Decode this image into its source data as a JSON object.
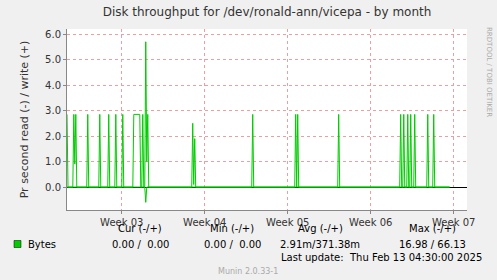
{
  "chart_data": {
    "type": "line",
    "title": "Disk throughput for /dev/ronald-ann/vicepa - by month",
    "y_label": "Pr second read (-) / write (+)",
    "xlim": [
      2.34,
      7.16
    ],
    "xticks": [
      {
        "value": 3,
        "label": "Week 03"
      },
      {
        "value": 4,
        "label": "Week 04"
      },
      {
        "value": 5,
        "label": "Week 05"
      },
      {
        "value": 6,
        "label": "Week 06"
      },
      {
        "value": 7,
        "label": "Week 07"
      }
    ],
    "ylim": [
      -0.9,
      6.2
    ],
    "yticks": [
      {
        "value": 0,
        "label": "0.0"
      },
      {
        "value": 1,
        "label": "1.0"
      },
      {
        "value": 2,
        "label": "2.0"
      },
      {
        "value": 3,
        "label": "3.0"
      },
      {
        "value": 4,
        "label": "4.0"
      },
      {
        "value": 5,
        "label": "5.0"
      },
      {
        "value": 6,
        "label": "6.0"
      }
    ],
    "grid": true,
    "series": [
      {
        "name": "Bytes",
        "color": "#00cc00",
        "x": [
          2.34,
          2.352,
          2.41,
          2.422,
          2.434,
          2.446,
          2.458,
          2.578,
          2.59,
          2.602,
          2.723,
          2.735,
          2.747,
          2.831,
          2.843,
          2.855,
          2.916,
          2.928,
          2.94,
          3.0,
          3.012,
          3.024,
          3.133,
          3.145,
          3.217,
          3.229,
          3.241,
          3.253,
          3.265,
          3.277,
          3.289,
          3.301,
          3.313,
          3.325,
          3.843,
          3.855,
          3.867,
          3.879,
          3.891,
          4.566,
          4.578,
          4.59,
          5.084,
          5.096,
          5.108,
          5.12,
          5.132,
          5.602,
          5.614,
          5.626,
          6.349,
          6.361,
          6.373,
          6.386,
          6.398,
          6.41,
          6.434,
          6.446,
          6.458,
          6.47,
          6.482,
          6.494,
          6.518,
          6.53,
          6.542,
          6.675,
          6.687,
          6.699,
          6.747,
          6.759,
          6.771,
          6.95
        ],
        "values": [
          2.85,
          0,
          0,
          2.85,
          0.9,
          2.85,
          0,
          0,
          2.85,
          0,
          0,
          2.85,
          0,
          0,
          2.85,
          0,
          0,
          2.85,
          0,
          0,
          2.85,
          0,
          0,
          2.85,
          2.85,
          0,
          0,
          2.85,
          0,
          0,
          5.7,
          1,
          2.85,
          0,
          0,
          2.5,
          0.1,
          1.9,
          0,
          0,
          2.85,
          0,
          0,
          2.85,
          0,
          2.85,
          0,
          0,
          2.85,
          0,
          0,
          2.85,
          0,
          0,
          2.85,
          0,
          0,
          2.85,
          0,
          0,
          2.85,
          0,
          0,
          2.85,
          0,
          0,
          2.85,
          0,
          0,
          2.85,
          0,
          0
        ]
      },
      {
        "color": "#00cc00",
        "x": [
          2.34,
          3.277,
          3.289,
          3.301,
          6.95
        ],
        "values": [
          0,
          0,
          -0.6,
          0,
          0
        ]
      }
    ],
    "summary": {
      "headers": [
        "Cur (-/+)",
        "Min (-/+)",
        "Avg (-/+)",
        "Max (-/+)"
      ],
      "values": [
        "0.00 /  0.00",
        "0.00 /  0.00",
        "2.91m/371.38m",
        "16.98 / 66.13"
      ]
    },
    "annotations": [
      "Last update:  Thu Feb 13 04:30:00 2025",
      "Munin 2.0.33-1",
      "RRDTOOL / TOBI OETIKER"
    ]
  }
}
